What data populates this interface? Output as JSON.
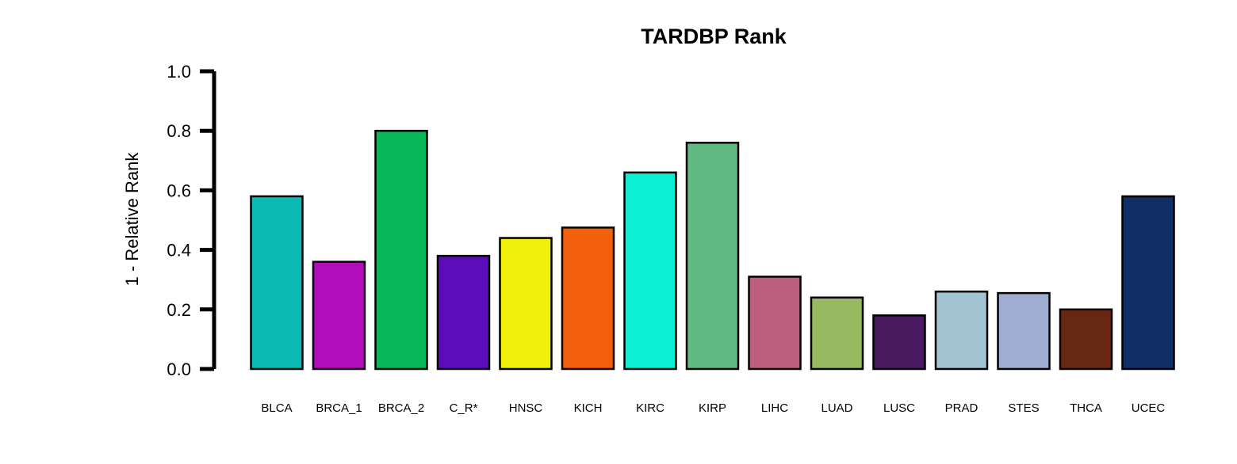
{
  "chart_data": {
    "type": "bar",
    "title": "TARDBP Rank",
    "xlabel": "",
    "ylabel": "1 - Relative Rank",
    "ylim": [
      0,
      1
    ],
    "yticks": [
      "0.0",
      "0.2",
      "0.4",
      "0.6",
      "0.8",
      "1.0"
    ],
    "grid": false,
    "categories": [
      "BLCA",
      "BRCA_1",
      "BRCA_2",
      "C_R*",
      "HNSC",
      "KICH",
      "KIRC",
      "KIRP",
      "LIHC",
      "LUAD",
      "LUSC",
      "PRAD",
      "STES",
      "THCA",
      "UCEC"
    ],
    "values": [
      0.58,
      0.36,
      0.8,
      0.38,
      0.44,
      0.475,
      0.66,
      0.76,
      0.31,
      0.24,
      0.18,
      0.26,
      0.255,
      0.2,
      0.58
    ],
    "colors": [
      "#0ABAB5",
      "#B10DBA",
      "#06B858",
      "#5C0CB8",
      "#F0F00C",
      "#F2600E",
      "#0DEFD3",
      "#60BA82",
      "#BD6080",
      "#97BA60",
      "#481A60",
      "#A2C4D2",
      "#A0ADD2",
      "#672712",
      "#0F2F66"
    ]
  }
}
